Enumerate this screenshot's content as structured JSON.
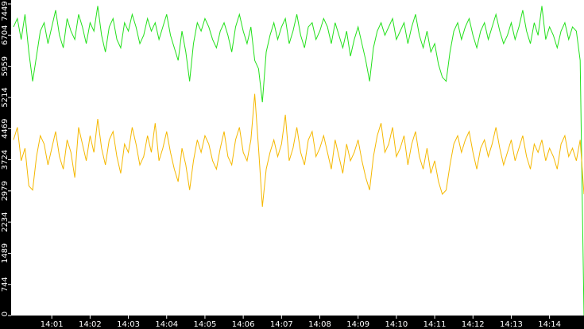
{
  "chart_data": {
    "type": "line",
    "categories": [
      null,
      null,
      null,
      null,
      null,
      null,
      null,
      null,
      null,
      null,
      "14:01",
      null,
      null,
      null,
      null,
      null,
      null,
      null,
      null,
      null,
      "14:02",
      null,
      null,
      null,
      null,
      null,
      null,
      null,
      null,
      null,
      "14:03",
      null,
      null,
      null,
      null,
      null,
      null,
      null,
      null,
      null,
      "14:04",
      null,
      null,
      null,
      null,
      null,
      null,
      null,
      null,
      null,
      "14:05",
      null,
      null,
      null,
      null,
      null,
      null,
      null,
      null,
      null,
      "14:06",
      null,
      null,
      null,
      null,
      null,
      null,
      null,
      null,
      null,
      "14:07",
      null,
      null,
      null,
      null,
      null,
      null,
      null,
      null,
      null,
      "14:08",
      null,
      null,
      null,
      null,
      null,
      null,
      null,
      null,
      null,
      "14:09",
      null,
      null,
      null,
      null,
      null,
      null,
      null,
      null,
      null,
      "14:10",
      null,
      null,
      null,
      null,
      null,
      null,
      null,
      null,
      null,
      "14:11",
      null,
      null,
      null,
      null,
      null,
      null,
      null,
      null,
      null,
      "14:12",
      null,
      null,
      null,
      null,
      null,
      null,
      null,
      null,
      null,
      "14:13",
      null,
      null,
      null,
      null,
      null,
      null,
      null,
      null,
      null,
      "14:14",
      null,
      null,
      null,
      null,
      null,
      null,
      null,
      null,
      null
    ],
    "series": [
      {
        "color": "#22e01a",
        "values": [
          6900,
          7100,
          6600,
          7200,
          6300,
          5600,
          6200,
          6800,
          7000,
          6500,
          6900,
          7300,
          6700,
          6400,
          7100,
          6800,
          6600,
          7200,
          6900,
          6500,
          7000,
          6800,
          7400,
          6700,
          6300,
          6900,
          7100,
          6600,
          6400,
          7000,
          6800,
          7200,
          6900,
          6500,
          6700,
          7100,
          6800,
          7000,
          6600,
          6900,
          7200,
          6700,
          6400,
          6100,
          6800,
          6300,
          5600,
          6500,
          7000,
          6800,
          7100,
          6900,
          6600,
          6400,
          6800,
          7000,
          6700,
          6300,
          6900,
          7200,
          6800,
          6500,
          6900,
          6100,
          5900,
          5100,
          6300,
          6700,
          7000,
          6600,
          6900,
          7100,
          6500,
          6800,
          7200,
          6700,
          6400,
          6900,
          7000,
          6600,
          6800,
          7100,
          6900,
          6500,
          7000,
          6700,
          6400,
          6800,
          6200,
          6600,
          6900,
          6500,
          6100,
          5600,
          6400,
          6800,
          7000,
          6700,
          6900,
          7100,
          6600,
          6800,
          7000,
          6500,
          6900,
          7200,
          6700,
          6400,
          6800,
          6300,
          6500,
          6000,
          5700,
          5600,
          6300,
          6800,
          7000,
          6600,
          6900,
          7100,
          6700,
          6400,
          6800,
          7000,
          6600,
          6900,
          7200,
          6800,
          6500,
          6700,
          7000,
          6600,
          6900,
          7300,
          6800,
          6500,
          7000,
          6700,
          7400,
          6600,
          6900,
          6700,
          6400,
          6800,
          7000,
          6600,
          6900,
          6800,
          6100,
          0
        ]
      },
      {
        "color": "#f5b800",
        "values": [
          4200,
          4500,
          3700,
          4000,
          3100,
          3000,
          3800,
          4300,
          4100,
          3600,
          4000,
          4400,
          3800,
          3500,
          4200,
          3900,
          3300,
          4500,
          4100,
          3700,
          4300,
          3900,
          4700,
          4000,
          3600,
          4200,
          4400,
          3800,
          3400,
          4100,
          3900,
          4500,
          4100,
          3600,
          3800,
          4300,
          3900,
          4600,
          3700,
          4000,
          4400,
          3900,
          3500,
          3200,
          4000,
          3600,
          3000,
          3700,
          4200,
          3900,
          4300,
          4100,
          3700,
          3500,
          4000,
          4400,
          3800,
          3600,
          4200,
          4500,
          3900,
          3700,
          4200,
          5300,
          4000,
          2600,
          3500,
          3900,
          4200,
          3800,
          4100,
          4800,
          3700,
          4000,
          4500,
          3900,
          3600,
          4200,
          4400,
          3800,
          4000,
          4300,
          3900,
          3500,
          4200,
          3800,
          3400,
          4100,
          3700,
          3900,
          4200,
          3700,
          3300,
          3000,
          3800,
          4300,
          4600,
          3900,
          4100,
          4500,
          3800,
          4000,
          4300,
          3600,
          4100,
          4400,
          3800,
          3500,
          4000,
          3400,
          3700,
          3200,
          2900,
          3000,
          3600,
          4100,
          4300,
          3900,
          4200,
          4400,
          3900,
          3500,
          4000,
          4200,
          3800,
          4100,
          4500,
          4000,
          3600,
          3900,
          4200,
          3700,
          4000,
          4300,
          3800,
          3500,
          4100,
          3900,
          4200,
          3700,
          4000,
          3800,
          3500,
          4100,
          4300,
          3800,
          4000,
          3700,
          4200,
          2900
        ]
      }
    ],
    "ylim": [
      0,
      7449
    ],
    "yticks": [
      0,
      744,
      1489,
      2234,
      2979,
      3724,
      4469,
      5214,
      5959,
      6704,
      7449
    ]
  }
}
